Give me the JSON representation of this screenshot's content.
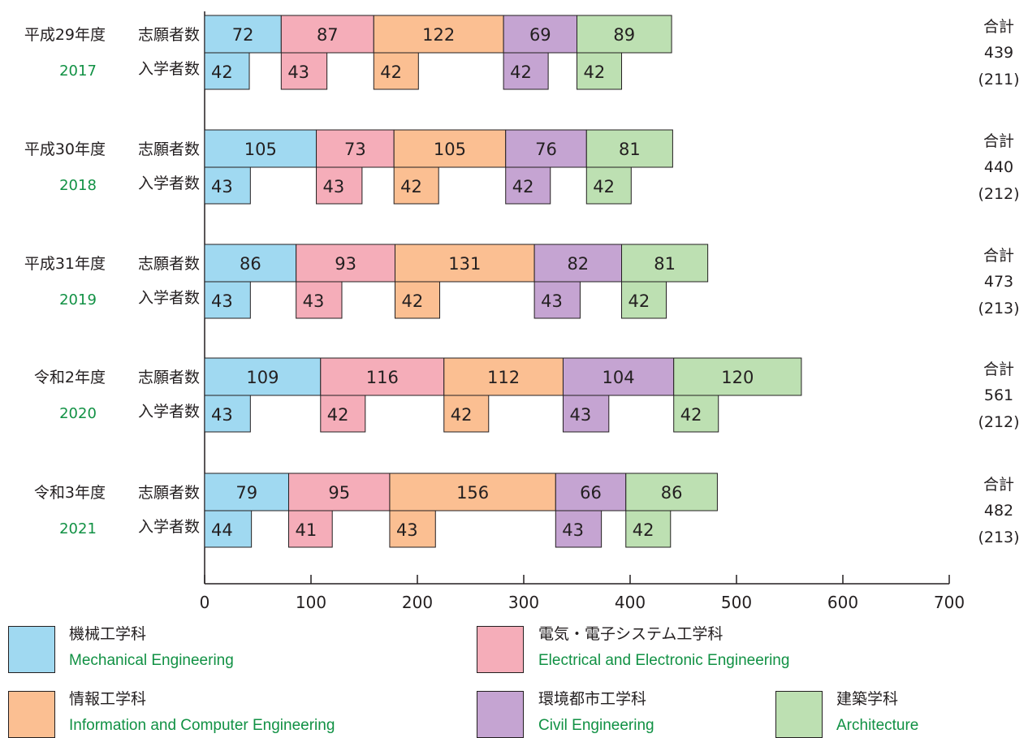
{
  "chart_data": {
    "type": "bar",
    "orientation": "horizontal",
    "stacked": true,
    "xlim": [
      0,
      700
    ],
    "xticks": [
      0,
      100,
      200,
      300,
      400,
      500,
      600,
      700
    ],
    "row_labels": {
      "applicants": "志願者数",
      "enrolled": "入学者数"
    },
    "total_label": "合計",
    "departments": [
      {
        "jp": "機械工学科",
        "en": "Mechanical Engineering",
        "color": "#a0d9f1"
      },
      {
        "jp": "電気・電子システム工学科",
        "en": "Electrical and Electronic Engineering",
        "color": "#f5adb9"
      },
      {
        "jp": "情報工学科",
        "en": "Information and Computer Engineering",
        "color": "#fbbf92"
      },
      {
        "jp": "環境都市工学科",
        "en": "Civil Engineering",
        "color": "#c5a4d2"
      },
      {
        "jp": "建築学科",
        "en": "Architecture",
        "color": "#bde0b2"
      }
    ],
    "years": [
      {
        "label": "平成29年度",
        "year": "2017",
        "applicants": [
          72,
          87,
          122,
          69,
          89
        ],
        "enrolled": [
          42,
          43,
          42,
          42,
          42
        ],
        "total": "439",
        "total_enrolled": "(211)"
      },
      {
        "label": "平成30年度",
        "year": "2018",
        "applicants": [
          105,
          73,
          105,
          76,
          81
        ],
        "enrolled": [
          43,
          43,
          42,
          42,
          42
        ],
        "total": "440",
        "total_enrolled": "(212)"
      },
      {
        "label": "平成31年度",
        "year": "2019",
        "applicants": [
          86,
          93,
          131,
          82,
          81
        ],
        "enrolled": [
          43,
          43,
          42,
          43,
          42
        ],
        "total": "473",
        "total_enrolled": "(213)"
      },
      {
        "label": "令和2年度",
        "year": "2020",
        "applicants": [
          109,
          116,
          112,
          104,
          120
        ],
        "enrolled": [
          43,
          42,
          42,
          43,
          42
        ],
        "total": "561",
        "total_enrolled": "(212)"
      },
      {
        "label": "令和3年度",
        "year": "2021",
        "applicants": [
          79,
          95,
          156,
          66,
          86
        ],
        "enrolled": [
          44,
          41,
          43,
          43,
          42
        ],
        "total": "482",
        "total_enrolled": "(213)"
      }
    ]
  }
}
